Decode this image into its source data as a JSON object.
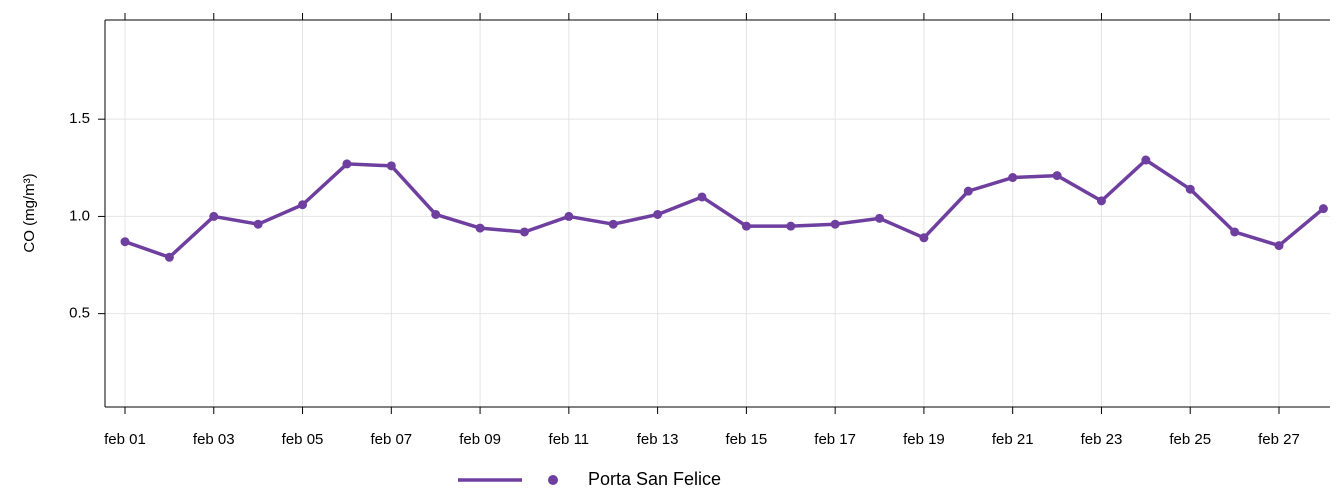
{
  "chart_data": {
    "type": "line",
    "categories": [
      "feb 01",
      null,
      "feb 03",
      null,
      "feb 05",
      null,
      "feb 07",
      null,
      "feb 09",
      null,
      "feb 11",
      null,
      "feb 13",
      null,
      "feb 15",
      null,
      "feb 17",
      null,
      "feb 19",
      null,
      "feb 21",
      null,
      "feb 23",
      null,
      "feb 25",
      null,
      "feb 27",
      null
    ],
    "series": [
      {
        "name": "Porta San Felice",
        "color": "#6f3fa0",
        "values": [
          0.87,
          0.79,
          1.0,
          0.96,
          1.06,
          1.27,
          1.26,
          1.01,
          0.94,
          0.92,
          1.0,
          0.96,
          1.01,
          1.1,
          0.95,
          0.95,
          0.96,
          0.99,
          0.89,
          1.13,
          1.2,
          1.21,
          1.08,
          1.29,
          1.14,
          0.92,
          0.85,
          1.04
        ]
      }
    ],
    "y_label": "CO (mg/m³)",
    "ylim": [
      0.02,
      2.01
    ],
    "yticks": [
      0.5,
      {
        "value": 1.0,
        "label": "1.0"
      },
      1.5
    ],
    "grid": true,
    "legend": "bottom"
  }
}
